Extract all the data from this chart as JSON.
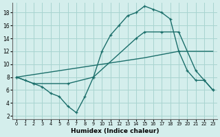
{
  "xlabel": "Humidex (Indice chaleur)",
  "xlim": [
    -0.5,
    23.5
  ],
  "ylim": [
    1.5,
    19.5
  ],
  "yticks": [
    2,
    4,
    6,
    8,
    10,
    12,
    14,
    16,
    18
  ],
  "xticks": [
    0,
    1,
    2,
    3,
    4,
    5,
    6,
    7,
    8,
    9,
    10,
    11,
    12,
    13,
    14,
    15,
    16,
    17,
    18,
    19,
    20,
    21,
    22,
    23
  ],
  "bg_color": "#d4eeec",
  "grid_color": "#a8d4d0",
  "line_color": "#1a6e6a",
  "curve1_x": [
    0,
    1,
    2,
    3,
    4,
    5,
    6,
    7,
    8,
    9,
    10,
    11,
    12,
    13,
    14,
    15,
    16,
    17,
    18,
    19,
    20,
    21,
    22,
    23
  ],
  "curve1_y": [
    8.0,
    7.5,
    7.0,
    6.5,
    5.5,
    5.0,
    3.5,
    2.5,
    5.0,
    8.0,
    12.0,
    14.5,
    16.0,
    17.5,
    18.0,
    19.0,
    18.5,
    18.0,
    17.0,
    12.0,
    9.0,
    7.5,
    7.5,
    6.0
  ],
  "curve2_x": [
    0,
    2,
    6,
    9,
    14,
    15,
    17,
    19,
    21,
    22,
    23
  ],
  "curve2_y": [
    8.0,
    7.0,
    7.0,
    8.0,
    14.0,
    15.0,
    15.0,
    15.0,
    9.0,
    7.5,
    6.0
  ],
  "curve3_x": [
    0,
    15,
    19,
    23
  ],
  "curve3_y": [
    8.0,
    11.0,
    12.0,
    12.0
  ]
}
